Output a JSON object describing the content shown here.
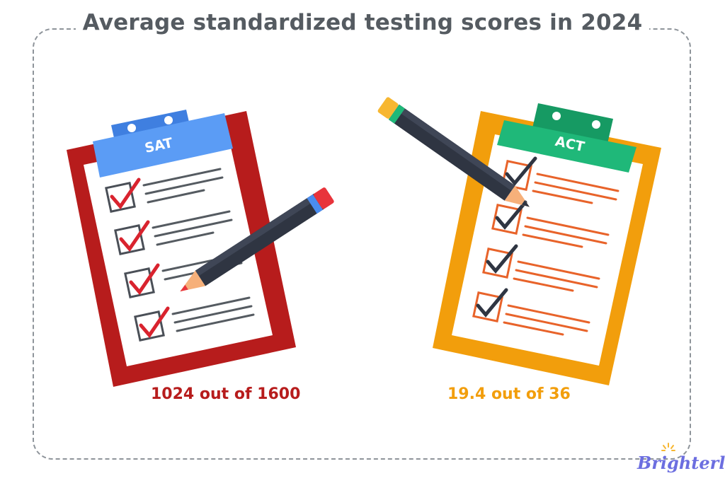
{
  "title": "Average standardized testing scores in 2024",
  "tests": {
    "sat": {
      "label": "SAT",
      "score_text": "1024 out of 1600",
      "color": "#b71c1c",
      "clip_color": "#4a8df0"
    },
    "act": {
      "label": "ACT",
      "score_text": "19.4 out of 36",
      "color": "#f29e0c",
      "clip_color": "#1fb879"
    }
  },
  "brand": {
    "name": "Brighterly",
    "color": "#6c6ee0"
  }
}
